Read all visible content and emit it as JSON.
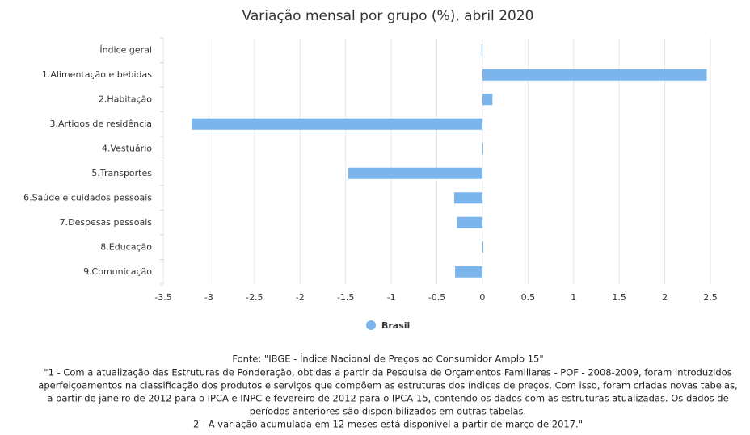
{
  "chart_data": {
    "type": "bar",
    "orientation": "horizontal",
    "title": "Variação mensal por grupo (%), abril 2020",
    "categories": [
      "Índice geral",
      "1.Alimentação e bebidas",
      "2.Habitação",
      "3.Artigos de residência",
      "4.Vestuário",
      "5.Transportes",
      "6.Saúde e cuidados pessoais",
      "7.Despesas pessoais",
      "8.Educação",
      "9.Comunicação"
    ],
    "series": [
      {
        "name": "Brasil",
        "color": "#7cb5ec",
        "values": [
          -0.01,
          2.46,
          0.11,
          -3.19,
          0,
          -1.47,
          -0.31,
          -0.28,
          0.01,
          -0.3
        ]
      }
    ],
    "xlim": [
      -3.5,
      2.5
    ],
    "xticks": [
      -3.5,
      -3,
      -2.5,
      -2,
      -1.5,
      -1,
      -0.5,
      0,
      0.5,
      1,
      1.5,
      2,
      2.5
    ],
    "grid": true,
    "legend": "bottom",
    "source": "Fonte: \"IBGE - Índice Nacional de Preços ao Consumidor Amplo 15\"",
    "notes": [
      "\"1 - Com a atualização das Estruturas de Ponderação, obtidas a partir da Pesquisa de Orçamentos Familiares - POF - 2008-2009, foram introduzidos",
      "aperfeiçoamentos na classificação dos produtos e serviços que compõem as estruturas dos índices de preços. Com isso, foram criadas novas tabelas,",
      "a partir de janeiro de 2012 para o IPCA e INPC e fevereiro de 2012 para o IPCA-15, contendo os dados com as estruturas atualizadas. Os dados de",
      "períodos anteriores são disponibilizados em outras tabelas.",
      "2 - A variação acumulada em 12 meses está disponível a partir de março de 2017.\""
    ]
  }
}
